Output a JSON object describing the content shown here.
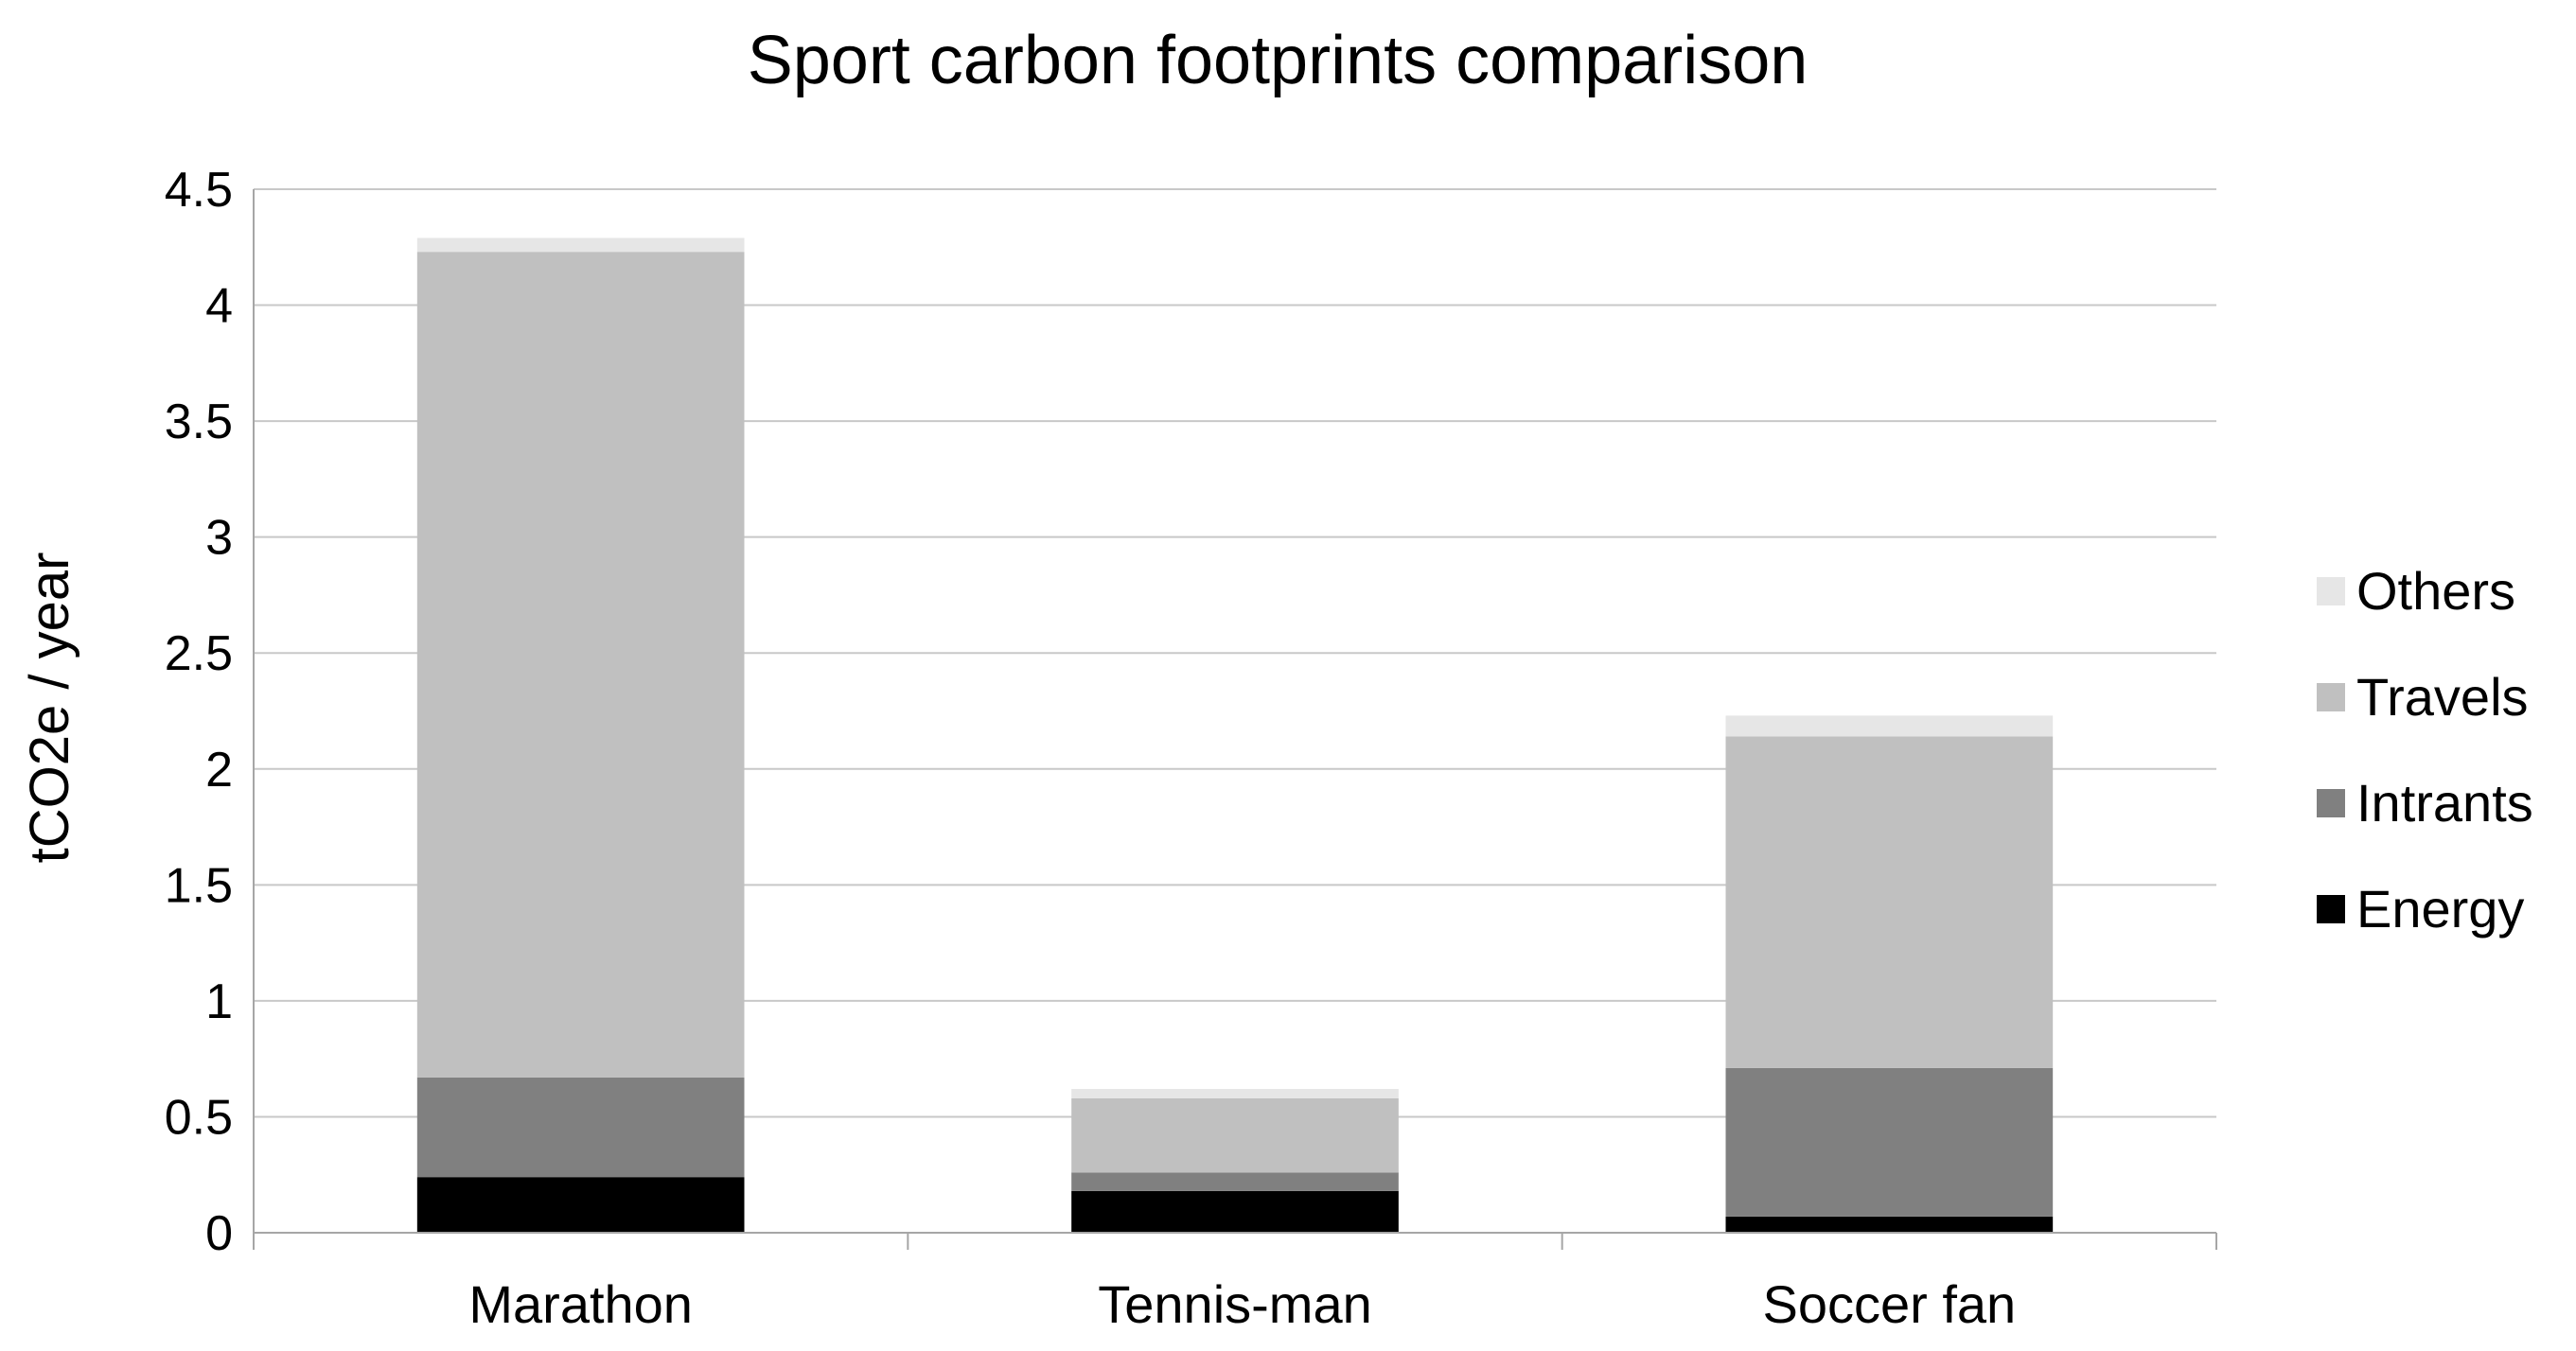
{
  "chart_data": {
    "type": "bar",
    "stacked": true,
    "title": "Sport carbon footprints comparison",
    "xlabel": "",
    "ylabel": "tCO2e / year",
    "ylim": [
      0,
      4.5
    ],
    "yticks": [
      "0",
      "0.5",
      "1",
      "1.5",
      "2",
      "2.5",
      "3",
      "3.5",
      "4",
      "4.5"
    ],
    "categories": [
      "Marathon",
      "Tennis-man",
      "Soccer fan"
    ],
    "series": [
      {
        "name": "Energy",
        "color": "#000000",
        "values": [
          0.24,
          0.18,
          0.07
        ]
      },
      {
        "name": "Intrants",
        "color": "#808080",
        "values": [
          0.43,
          0.08,
          0.64
        ]
      },
      {
        "name": "Travels",
        "color": "#c0c0c0",
        "values": [
          3.56,
          0.32,
          1.43
        ]
      },
      {
        "name": "Others",
        "color": "#e6e6e6",
        "values": [
          0.06,
          0.04,
          0.09
        ]
      }
    ],
    "legend_position": "right",
    "legend_order": [
      "Others",
      "Travels",
      "Intrants",
      "Energy"
    ],
    "grid": true,
    "gridline_color": "#c8c8c8"
  }
}
